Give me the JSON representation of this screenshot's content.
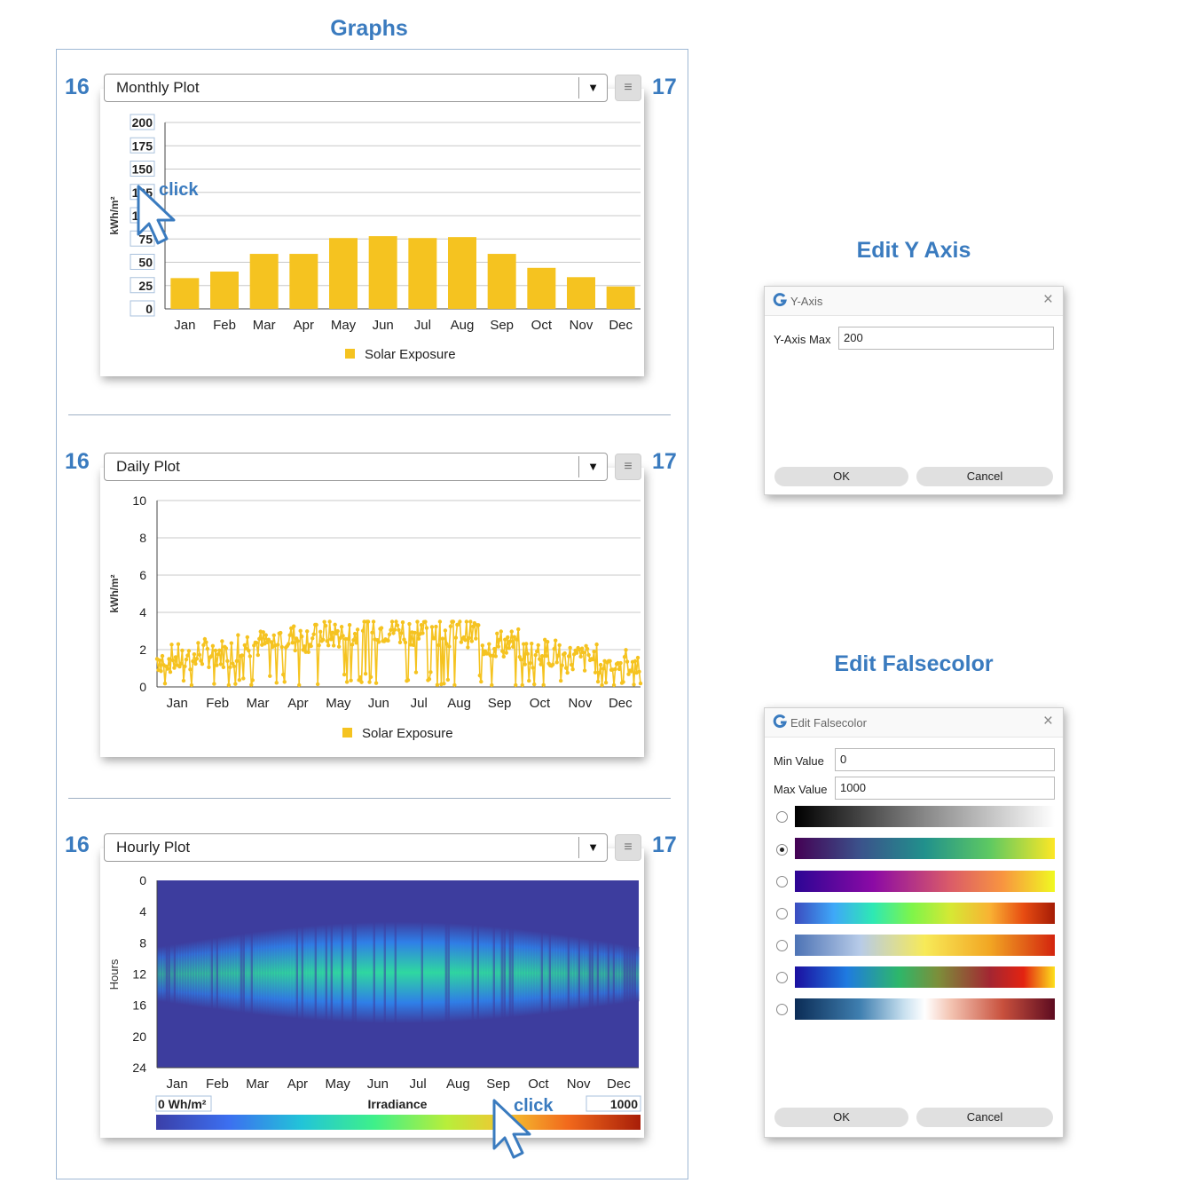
{
  "headings": {
    "graphs": "Graphs",
    "edit_y_axis": "Edit Y Axis",
    "edit_falsecolor": "Edit Falsecolor"
  },
  "callouts": {
    "left": "16",
    "right": "17"
  },
  "click_text": "click",
  "colors": {
    "accent": "#3a7bbf",
    "bar": "#f5c320",
    "heat_bg": "#3d3d9e"
  },
  "icons": {
    "menu": "hamburger-icon",
    "dropdown": "triangle-down-icon",
    "cursor": "mouse-pointer-icon",
    "logo": "app-logo-icon",
    "close": "close-icon"
  },
  "monthly": {
    "selector": "Monthly Plot",
    "chart_data": {
      "type": "bar",
      "categories": [
        "Jan",
        "Feb",
        "Mar",
        "Apr",
        "May",
        "Jun",
        "Jul",
        "Aug",
        "Sep",
        "Oct",
        "Nov",
        "Dec"
      ],
      "series": [
        {
          "name": "Solar Exposure",
          "values": [
            33,
            40,
            59,
            59,
            76,
            78,
            76,
            77,
            59,
            44,
            34,
            24
          ]
        }
      ],
      "ylabel": "kWh/m²",
      "ylim": [
        0,
        200
      ],
      "yticks": [
        "0",
        "25",
        "50",
        "75",
        "100",
        "125",
        "150",
        "175",
        "200"
      ],
      "grid": true,
      "legend": "bottom"
    }
  },
  "daily": {
    "selector": "Daily Plot",
    "chart_data": {
      "type": "line",
      "categories": [
        "Jan",
        "Feb",
        "Mar",
        "Apr",
        "May",
        "Jun",
        "Jul",
        "Aug",
        "Sep",
        "Oct",
        "Nov",
        "Dec"
      ],
      "series": [
        {
          "name": "Solar Exposure",
          "monthly_mean": [
            1.2,
            1.5,
            2.0,
            2.3,
            2.5,
            2.8,
            2.7,
            2.6,
            2.0,
            1.5,
            1.2,
            1.0
          ],
          "range": [
            0,
            3.5
          ]
        }
      ],
      "ylabel": "kWh/m²",
      "ylim": [
        0,
        10
      ],
      "yticks": [
        "0",
        "2",
        "4",
        "6",
        "8",
        "10"
      ],
      "grid": true,
      "legend": "bottom"
    }
  },
  "hourly": {
    "selector": "Hourly Plot",
    "chart_data": {
      "type": "heatmap",
      "categories": [
        "Jan",
        "Feb",
        "Mar",
        "Apr",
        "May",
        "Jun",
        "Jul",
        "Aug",
        "Sep",
        "Oct",
        "Nov",
        "Dec"
      ],
      "ylabel": "Hours",
      "yticks": [
        "0",
        "4",
        "8",
        "12",
        "16",
        "20",
        "24"
      ],
      "colorbar": {
        "min_label": "0 Wh/m²",
        "title": "Irradiance",
        "max_label": "1000",
        "min": 0,
        "max": 1000
      }
    }
  },
  "yaxis_dialog": {
    "title": "Y-Axis",
    "field_label": "Y-Axis Max",
    "field_value": "200",
    "ok": "OK",
    "cancel": "Cancel"
  },
  "falsecolor_dialog": {
    "title": "Edit Falsecolor",
    "min_label": "Min Value",
    "min_value": "0",
    "max_label": "Max Value",
    "max_value": "1000",
    "selected_index": 1,
    "ok": "OK",
    "cancel": "Cancel"
  }
}
